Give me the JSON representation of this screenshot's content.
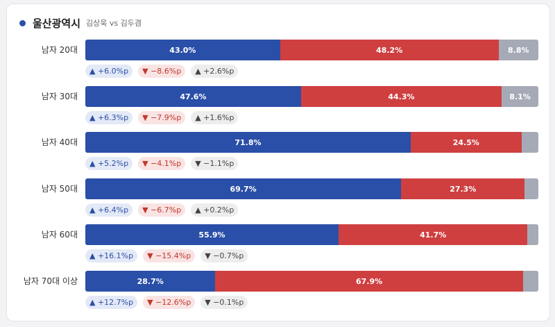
{
  "header": {
    "title": "울산광역시",
    "subtitle": "김상욱 vs 김두겸"
  },
  "colors": {
    "blue": "#2a4fa8",
    "red": "#cf3f40",
    "gray": "#a5aab6"
  },
  "chart_data": {
    "type": "bar",
    "orientation": "horizontal",
    "stacked": true,
    "normalized_to": 100,
    "categories": [
      "남자 20대",
      "남자 30대",
      "남자 40대",
      "남자 50대",
      "남자 60대",
      "남자 70대 이상"
    ],
    "series": [
      {
        "values": [
          43.0,
          47.6,
          71.8,
          69.7,
          55.9,
          28.7
        ],
        "labels": [
          "43.0%",
          "47.6%",
          "71.8%",
          "69.7%",
          "55.9%",
          "28.7%"
        ],
        "color": "#2a4fa8"
      },
      {
        "values": [
          48.2,
          44.3,
          24.5,
          27.3,
          41.7,
          67.9
        ],
        "labels": [
          "48.2%",
          "44.3%",
          "24.5%",
          "27.3%",
          "41.7%",
          "67.9%"
        ],
        "color": "#cf3f40"
      },
      {
        "values": [
          8.8,
          8.1,
          3.7,
          3.0,
          2.4,
          3.4
        ],
        "labels": [
          "8.8%",
          "8.1%",
          "",
          "",
          "",
          ""
        ],
        "color": "#a5aab6"
      }
    ],
    "changes": [
      [
        "▲ +6.0%p",
        "▼ −8.6%p",
        "▲ +2.6%p"
      ],
      [
        "▲ +6.3%p",
        "▼ −7.9%p",
        "▲ +1.6%p"
      ],
      [
        "▲ +5.2%p",
        "▼ −4.1%p",
        "▼ −1.1%p"
      ],
      [
        "▲ +6.4%p",
        "▼ −6.7%p",
        "▲ +0.2%p"
      ],
      [
        "▲ +16.1%p",
        "▼ −15.4%p",
        "▼ −0.7%p"
      ],
      [
        "▲ +12.7%p",
        "▼ −12.6%p",
        "▼ −0.1%p"
      ]
    ]
  }
}
